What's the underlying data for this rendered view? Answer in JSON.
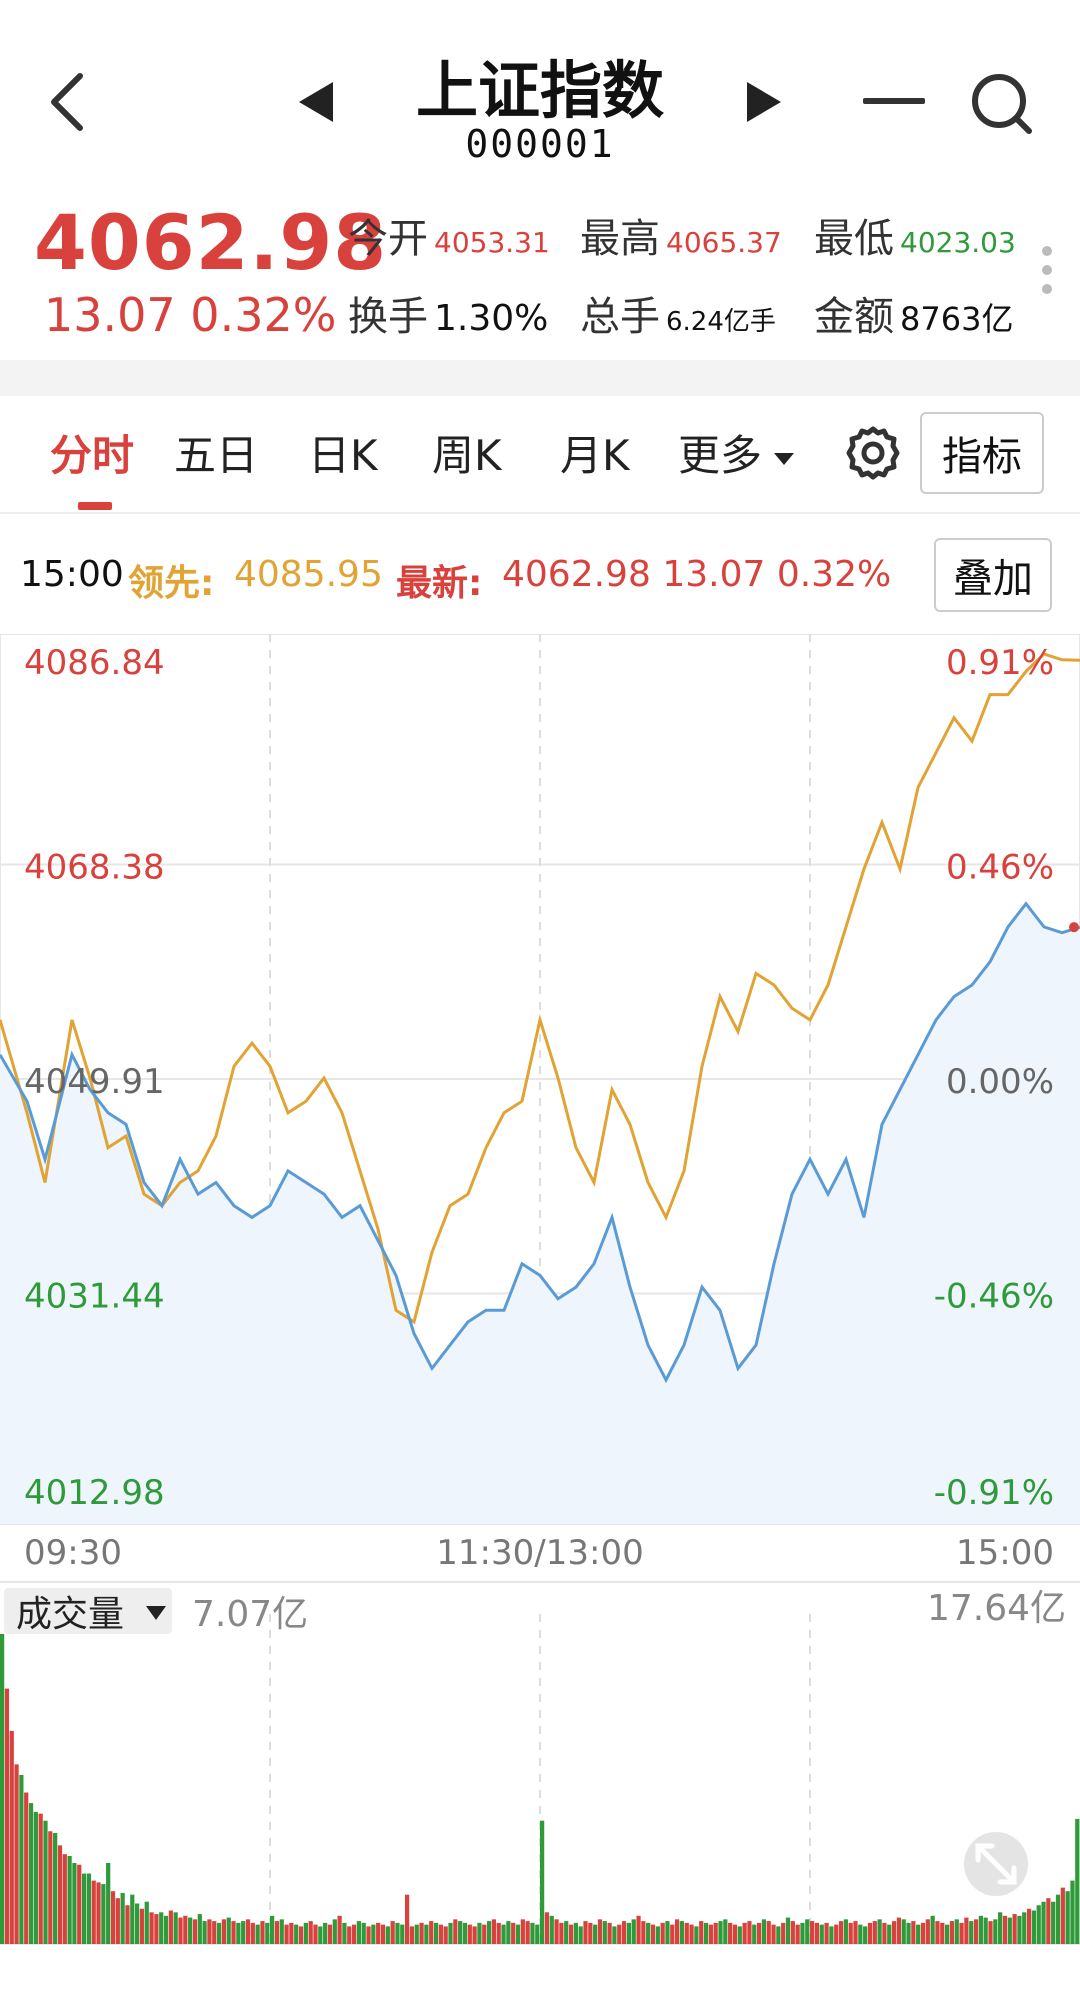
{
  "header": {
    "title": "上证指数",
    "code": "000001",
    "icons": [
      "back-arrow-icon",
      "prev-triangle-icon",
      "next-triangle-icon",
      "minimize-icon",
      "search-icon"
    ]
  },
  "quote": {
    "price": "4062.98",
    "change": "13.07 0.32%",
    "open_label": "今开",
    "open_value": "4053.31",
    "high_label": "最高",
    "high_value": "4065.37",
    "low_label": "最低",
    "low_value": "4023.03",
    "turnover_label": "换手",
    "turnover_value": "1.30%",
    "volume_label": "总手",
    "volume_value": "6.24亿手",
    "amount_label": "金额",
    "amount_value": "8763亿"
  },
  "tabs": {
    "items": [
      "分时",
      "五日",
      "日K",
      "周K",
      "月K",
      "更多"
    ],
    "active": 0,
    "indicator_label": "指标"
  },
  "infoline": {
    "time": "15:00",
    "lead_label": "领先:",
    "lead_value": "4085.95",
    "latest_label": "最新:",
    "latest_value": "4062.98 13.07 0.32%",
    "overlay_label": "叠加"
  },
  "colors": {
    "up": "#d9423c",
    "down": "#2f9a3a",
    "price_line": "#5b9bd5",
    "lead_line": "#e0a334",
    "area_fill": "#eef5fc"
  },
  "chart_data": [
    {
      "type": "line",
      "y_ticks_left": [
        "4086.84",
        "4068.38",
        "4049.91",
        "4031.44",
        "4012.98"
      ],
      "y_ticks_right": [
        "0.91%",
        "0.46%",
        "0.00%",
        "-0.46%",
        "-0.91%"
      ],
      "x_ticks": [
        "09:30",
        "11:30/13:00",
        "15:00"
      ],
      "ylim": [
        4012.98,
        4086.84
      ],
      "prev_close": 4049.91,
      "x": [
        0,
        6,
        10,
        16,
        20,
        24,
        28,
        32,
        36,
        40,
        44,
        48,
        52,
        56,
        60,
        64,
        68,
        72,
        76,
        80,
        84,
        88,
        92,
        96,
        100,
        104,
        108,
        112,
        116,
        120,
        124,
        128,
        132,
        136,
        140,
        144,
        148,
        152,
        156,
        160,
        164,
        168,
        172,
        176,
        180,
        184,
        188,
        192,
        196,
        200,
        204,
        208,
        212,
        216,
        220,
        224,
        228,
        232,
        236,
        240
      ],
      "series": [
        {
          "values": [
            4052,
            4048,
            4043,
            4052,
            4049,
            4047,
            4046,
            4041,
            4039,
            4043,
            4040,
            4041,
            4039,
            4038,
            4039,
            4042,
            4041,
            4040,
            4038,
            4039,
            4036,
            4033,
            4028,
            4025,
            4027,
            4029,
            4030,
            4030,
            4034,
            4033,
            4031,
            4032,
            4034,
            4038,
            4032,
            4027,
            4024,
            4027,
            4032,
            4030,
            4025,
            4027,
            4034,
            4040,
            4043,
            4040,
            4043,
            4038,
            4046,
            4049,
            4052,
            4055,
            4057,
            4058,
            4060,
            4063,
            4065,
            4063,
            4062.5,
            4062.98
          ]
        },
        {
          "values": [
            4055,
            4047,
            4041,
            4055,
            4050,
            4044,
            4045,
            4040,
            4039,
            4041,
            4042,
            4045,
            4051,
            4053,
            4051,
            4047,
            4048,
            4050,
            4047,
            4042,
            4037,
            4030,
            4029,
            4035,
            4039,
            4040,
            4044,
            4047,
            4048,
            4055,
            4050,
            4044,
            4041,
            4049,
            4046,
            4041,
            4038,
            4042,
            4051,
            4057,
            4054,
            4059,
            4058,
            4056,
            4055,
            4058,
            4063,
            4068,
            4072,
            4068,
            4075,
            4078,
            4081,
            4079,
            4083,
            4083,
            4085,
            4086.5,
            4086,
            4085.95
          ]
        }
      ]
    },
    {
      "type": "bar",
      "title": "成交量",
      "current": "7.07亿",
      "max_label": "17.64亿",
      "values": [
        17.6,
        14.5,
        12.1,
        10.2,
        9.6,
        8.6,
        8.0,
        7.5,
        7.4,
        7.0,
        6.4,
        6.3,
        5.6,
        5.1,
        5.0,
        4.6,
        4.5,
        4.0,
        4.0,
        3.6,
        3.5,
        3.4,
        4.6,
        3.0,
        2.6,
        2.9,
        2.2,
        2.8,
        2.3,
        2.0,
        2.4,
        1.8,
        1.7,
        1.8,
        1.6,
        1.9,
        1.8,
        1.5,
        1.6,
        1.5,
        1.4,
        1.7,
        1.3,
        1.4,
        1.3,
        1.2,
        1.4,
        1.5,
        1.3,
        1.2,
        1.3,
        1.4,
        1.2,
        1.1,
        1.3,
        1.2,
        1.6,
        1.3,
        1.4,
        1.1,
        1.2,
        1.1,
        1.0,
        1.2,
        1.3,
        1.1,
        1.0,
        1.2,
        1.1,
        1.4,
        1.6,
        1.2,
        1.0,
        1.1,
        1.3,
        1.2,
        1.0,
        1.1,
        1.2,
        1.1,
        1.0,
        1.3,
        1.2,
        1.1,
        2.8,
        1.0,
        1.1,
        1.2,
        1.1,
        1.3,
        1.2,
        1.1,
        1.0,
        1.2,
        1.4,
        1.3,
        1.2,
        1.1,
        1.0,
        1.2,
        1.1,
        1.3,
        1.4,
        1.2,
        1.1,
        1.3,
        1.2,
        1.1,
        1.4,
        1.3,
        1.2,
        1.1,
        7.0,
        1.8,
        1.6,
        1.4,
        1.2,
        1.3,
        1.1,
        1.2,
        1.0,
        1.3,
        1.2,
        1.1,
        1.4,
        1.3,
        1.2,
        1.0,
        1.1,
        1.3,
        1.2,
        1.4,
        1.6,
        1.3,
        1.2,
        1.1,
        1.0,
        1.2,
        1.3,
        1.1,
        1.4,
        1.3,
        1.2,
        1.1,
        1.0,
        1.3,
        1.2,
        1.1,
        1.2,
        1.3,
        1.4,
        1.2,
        1.1,
        1.0,
        1.2,
        1.3,
        1.1,
        1.2,
        1.4,
        1.3,
        1.1,
        1.0,
        1.2,
        1.5,
        1.3,
        1.1,
        1.2,
        1.4,
        1.3,
        1.2,
        1.1,
        1.2,
        1.0,
        1.1,
        1.3,
        1.4,
        1.2,
        1.3,
        1.1,
        1.0,
        1.2,
        1.3,
        1.4,
        1.2,
        1.1,
        1.3,
        1.5,
        1.4,
        1.2,
        1.3,
        1.1,
        1.2,
        1.4,
        1.6,
        1.3,
        1.2,
        1.1,
        1.3,
        1.4,
        1.2,
        1.5,
        1.3,
        1.4,
        1.6,
        1.5,
        1.3,
        1.4,
        1.8,
        1.6,
        1.5,
        1.7,
        1.6,
        1.8,
        2.0,
        1.9,
        2.2,
        2.4,
        2.6,
        2.4,
        2.8,
        3.2,
        3.0,
        3.6,
        7.1
      ],
      "bar_colors": [
        "down",
        "up",
        "up",
        "up",
        "down",
        "up",
        "down",
        "down",
        "up",
        "down",
        "up",
        "down",
        "up",
        "up",
        "down",
        "down",
        "up",
        "down",
        "down",
        "up",
        "up",
        "down",
        "down",
        "up",
        "up",
        "down",
        "up",
        "down",
        "down",
        "up",
        "down",
        "up",
        "up",
        "down",
        "down",
        "up",
        "down",
        "up",
        "up",
        "down",
        "up",
        "down",
        "down",
        "up",
        "up",
        "down",
        "up",
        "down",
        "up",
        "down",
        "down",
        "up",
        "up",
        "down",
        "up",
        "down",
        "down",
        "up",
        "down",
        "up",
        "up",
        "down",
        "up",
        "down",
        "up",
        "up",
        "down",
        "down",
        "up",
        "down",
        "up",
        "down",
        "up",
        "up",
        "down",
        "down",
        "up",
        "down",
        "up",
        "up",
        "down",
        "up",
        "down",
        "down",
        "up",
        "up",
        "down",
        "up",
        "down",
        "up",
        "down",
        "up",
        "up",
        "down",
        "up",
        "down",
        "down",
        "up",
        "up",
        "down",
        "up",
        "down",
        "up",
        "up",
        "down",
        "down",
        "up",
        "down",
        "up",
        "up",
        "down",
        "down",
        "down",
        "up",
        "down",
        "up",
        "up",
        "down",
        "up",
        "down",
        "down",
        "up",
        "up",
        "down",
        "up",
        "down",
        "up",
        "down",
        "up",
        "up",
        "down",
        "down",
        "up",
        "up",
        "down",
        "up",
        "down",
        "up",
        "down",
        "up",
        "up",
        "down",
        "up",
        "up",
        "down",
        "up",
        "down",
        "up",
        "up",
        "down",
        "down",
        "up",
        "up",
        "down",
        "up",
        "up",
        "down",
        "up",
        "down",
        "up",
        "up",
        "down",
        "up",
        "down",
        "up",
        "up",
        "down",
        "down",
        "up",
        "up",
        "down",
        "up",
        "down",
        "up",
        "up",
        "down",
        "up",
        "up",
        "down",
        "down",
        "up",
        "up",
        "down",
        "up",
        "down",
        "up",
        "up",
        "down",
        "down",
        "up",
        "down",
        "up",
        "up",
        "down",
        "up",
        "up",
        "down",
        "up",
        "down",
        "up",
        "up",
        "down",
        "up",
        "down",
        "down",
        "up",
        "down",
        "down",
        "up",
        "down",
        "up",
        "down",
        "down",
        "up",
        "down",
        "down",
        "down",
        "up",
        "down",
        "down",
        "up",
        "down",
        "down",
        "down",
        "down",
        "down",
        "down",
        "down",
        "down",
        "up"
      ]
    }
  ]
}
